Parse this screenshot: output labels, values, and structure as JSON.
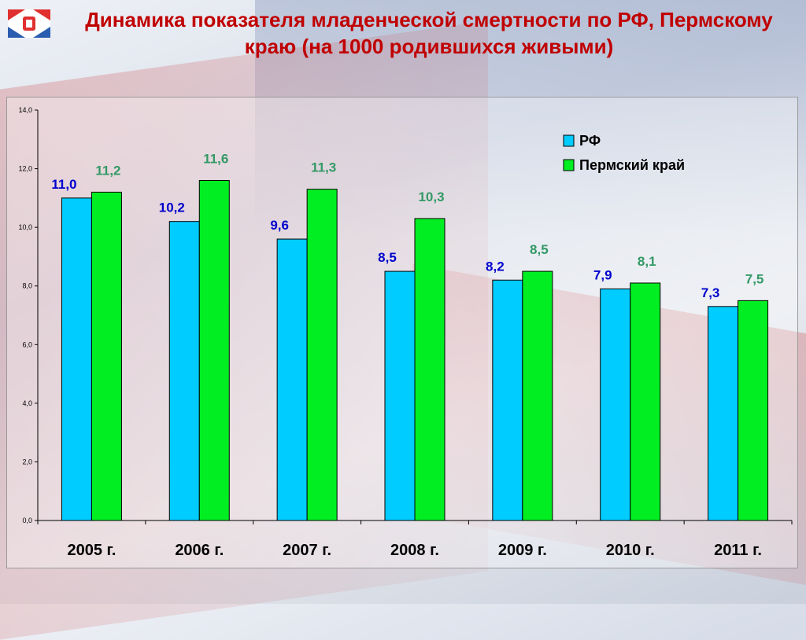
{
  "title": "Динамика показателя младенческой смертности по РФ, Пермскому краю (на 1000 родившихся живыми)",
  "colors": {
    "rf": "#00ccff",
    "perm": "#00ee22",
    "rf_label": "#0000cc",
    "perm_label": "#339966",
    "title": "#c00000"
  },
  "chart_data": {
    "type": "bar",
    "title": "",
    "categories": [
      "2005 г.",
      "2006 г.",
      "2007 г.",
      "2008 г.",
      "2009 г.",
      "2010 г.",
      "2011 г."
    ],
    "series": [
      {
        "name": "РФ",
        "values": [
          11.0,
          10.2,
          9.6,
          8.5,
          8.2,
          7.9,
          7.3
        ],
        "labels": [
          "11,0",
          "10,2",
          "9,6",
          "8,5",
          "8,2",
          "7,9",
          "7,3"
        ]
      },
      {
        "name": "Пермский край",
        "values": [
          11.2,
          11.6,
          11.3,
          10.3,
          8.5,
          8.1,
          7.5
        ],
        "labels": [
          "11,2",
          "11,6",
          "11,3",
          "10,3",
          "8,5",
          "8,1",
          "7,5"
        ]
      }
    ],
    "ylim": [
      0,
      14
    ],
    "yticks": [
      0,
      2,
      4,
      6,
      8,
      10,
      12,
      14
    ],
    "ytick_labels": [
      "0,0",
      "2,0",
      "4,0",
      "6,0",
      "8,0",
      "10,0",
      "12,0",
      "14,0"
    ],
    "xlabel": "",
    "ylabel": "",
    "grid": false,
    "legend": "top-right"
  }
}
